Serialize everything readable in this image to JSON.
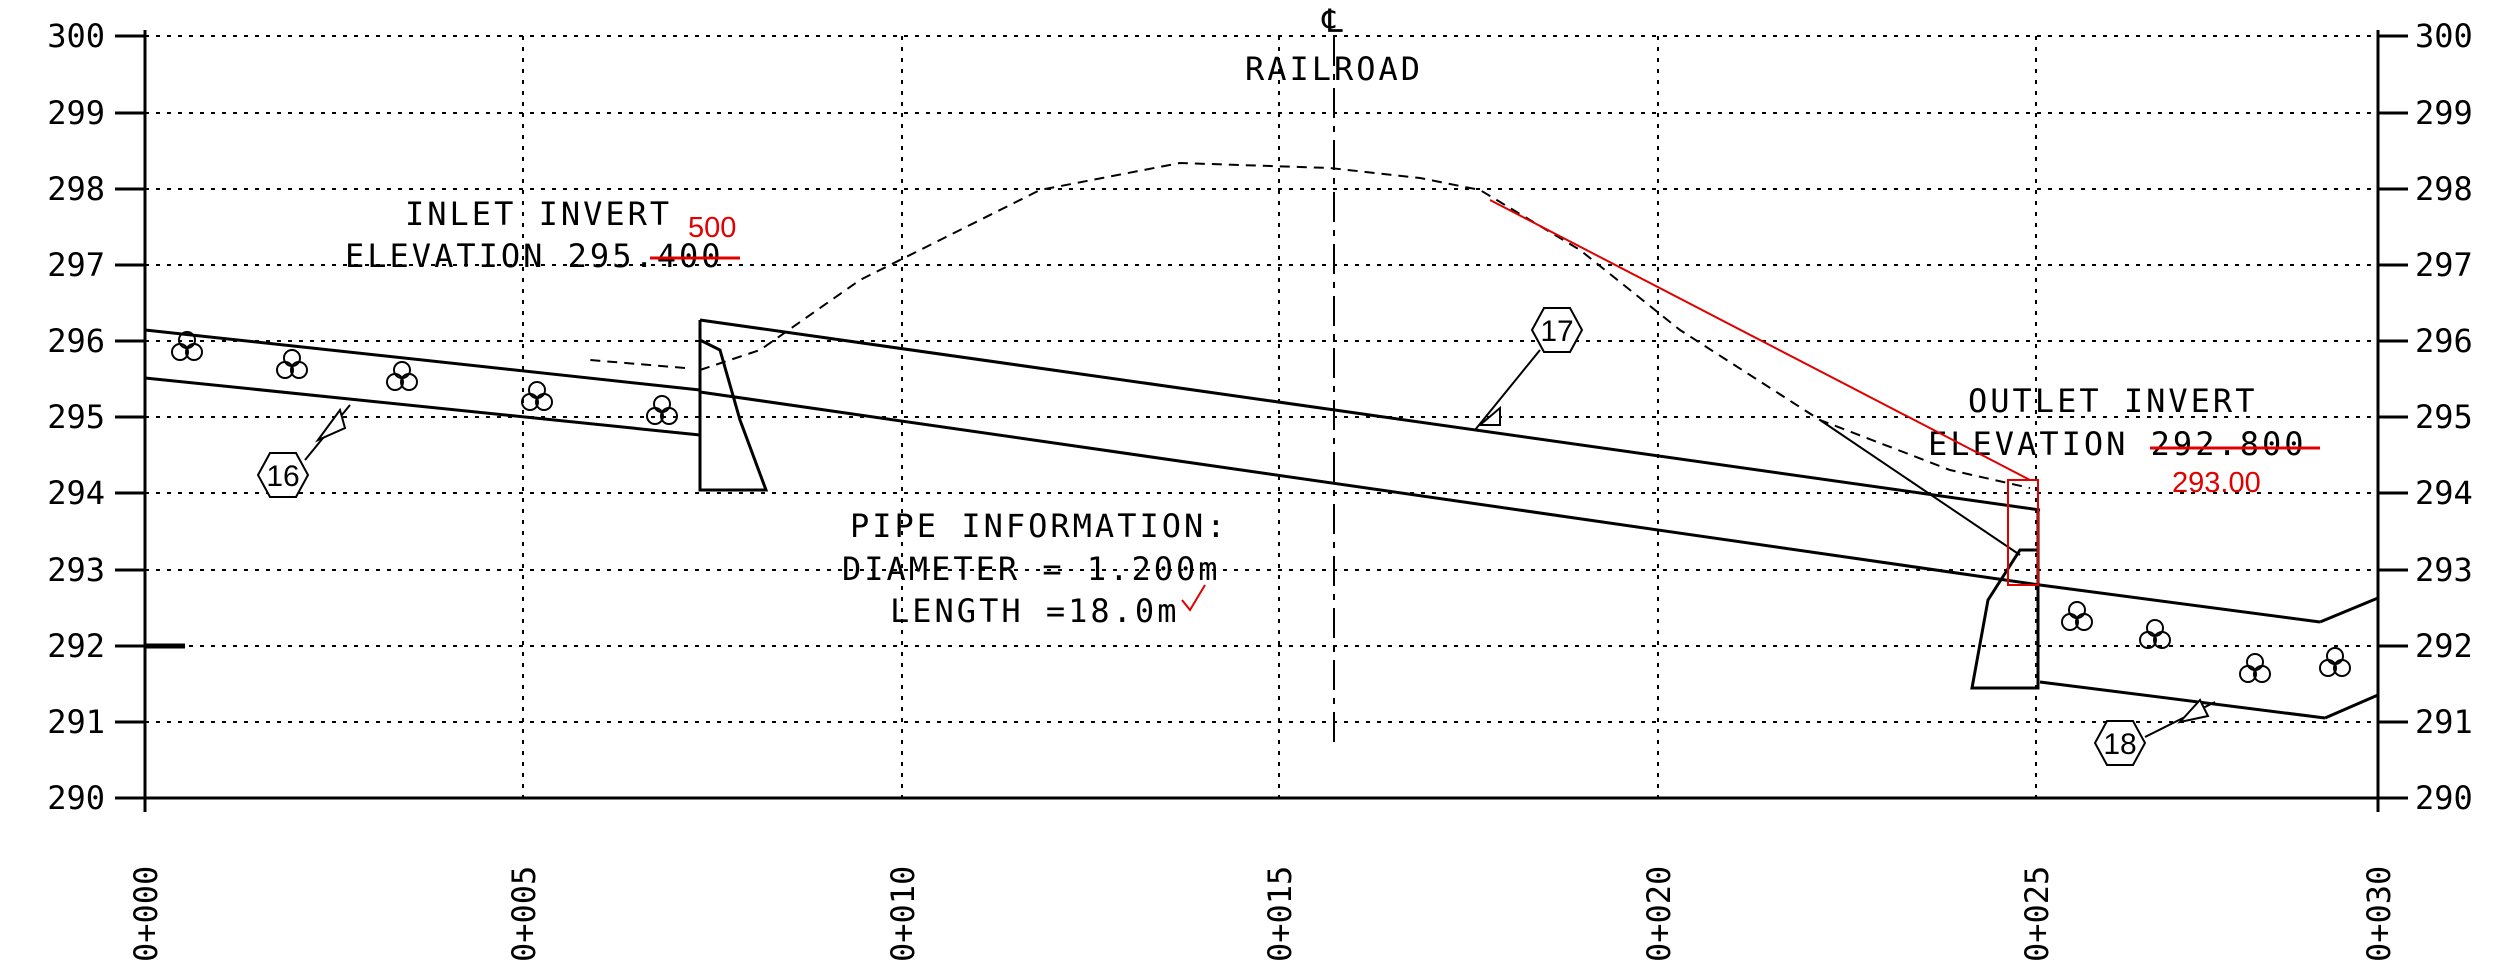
{
  "axes": {
    "y_left_labels": [
      "300",
      "299",
      "298",
      "297",
      "296",
      "295",
      "294",
      "293",
      "292",
      "291",
      "290"
    ],
    "y_right_labels": [
      "300",
      "299",
      "298",
      "297",
      "296",
      "295",
      "294",
      "293",
      "292",
      "291",
      "290"
    ],
    "x_labels": [
      "0+000",
      "0+005",
      "0+010",
      "0+015",
      "0+020",
      "0+025",
      "0+030"
    ],
    "y_range": [
      290,
      300
    ],
    "x_range": [
      0,
      30
    ]
  },
  "centerline": {
    "symbol": "℄",
    "label": "RAILROAD"
  },
  "inlet": {
    "line1": "INLET INVERT",
    "line2": "ELEVATION 295.400",
    "correction": "500"
  },
  "outlet": {
    "line1": "OUTLET INVERT",
    "line2": "ELEVATION 292.800",
    "correction": "293.00"
  },
  "pipe_info": {
    "line1": "PIPE INFORMATION:",
    "line2": "DIAMETER = 1.200m",
    "line3": "LENGTH =18.0m"
  },
  "callouts": [
    "16",
    "17",
    "18"
  ],
  "colors": {
    "ink": "#000000",
    "redline": "#e00000"
  }
}
